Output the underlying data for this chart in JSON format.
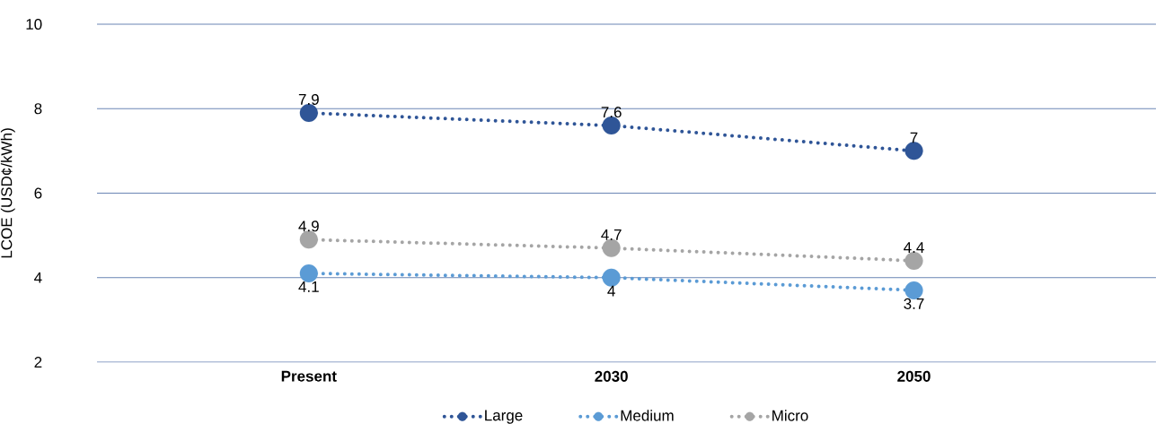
{
  "chart_data": {
    "type": "line",
    "ylabel": "LCOE (USD¢/kWh)",
    "categories": [
      "Present",
      "2030",
      "2050"
    ],
    "series": [
      {
        "name": "Large",
        "color": "#2f5597",
        "values": [
          7.9,
          7.6,
          7
        ]
      },
      {
        "name": "Medium",
        "color": "#5b9bd5",
        "values": [
          4.1,
          4,
          3.7
        ]
      },
      {
        "name": "Micro",
        "color": "#a5a5a5",
        "values": [
          4.9,
          4.7,
          4.4
        ]
      }
    ],
    "ylim": [
      2,
      10
    ],
    "yticks": [
      2,
      4,
      6,
      8,
      10
    ],
    "grid": "y",
    "legend": "bottom",
    "marker": "circle",
    "line_style": "dotted",
    "data_labels": true
  }
}
